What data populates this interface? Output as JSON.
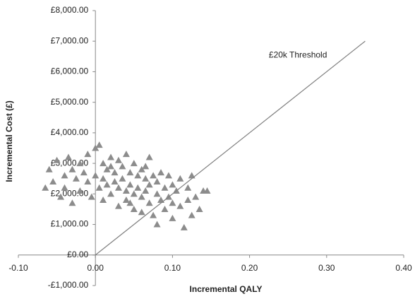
{
  "chart_data": {
    "type": "scatter",
    "x_label": "Incremental QALY",
    "y_label": "Incremental Cost (£)",
    "xlim": [
      -0.1,
      0.4
    ],
    "ylim": [
      -1000,
      8000
    ],
    "xticks": [
      {
        "value": -0.1,
        "label": "-0.10"
      },
      {
        "value": 0,
        "label": "0.00"
      },
      {
        "value": 0.1,
        "label": "0.10"
      },
      {
        "value": 0.2,
        "label": "0.20"
      },
      {
        "value": 0.3,
        "label": "0.30"
      },
      {
        "value": 0.4,
        "label": "0.40"
      }
    ],
    "yticks": [
      {
        "value": -1000,
        "label": "-£1,000.00"
      },
      {
        "value": 0,
        "label": "£0.00"
      },
      {
        "value": 1000,
        "label": "£1,000.00"
      },
      {
        "value": 2000,
        "label": "£2,000.00"
      },
      {
        "value": 3000,
        "label": "£3,000.00"
      },
      {
        "value": 4000,
        "label": "£4,000.00"
      },
      {
        "value": 5000,
        "label": "£5,000.00"
      },
      {
        "value": 6000,
        "label": "£6,000.00"
      },
      {
        "value": 7000,
        "label": "£7,000.00"
      },
      {
        "value": 8000,
        "label": "£8,000.00"
      }
    ],
    "grid": false,
    "series": [
      {
        "type": "scatter",
        "color": "#8c8c8c",
        "x": [
          -0.06,
          -0.055,
          -0.05,
          -0.045,
          -0.04,
          -0.04,
          -0.035,
          -0.03,
          -0.03,
          -0.025,
          -0.02,
          -0.02,
          -0.015,
          -0.01,
          -0.01,
          -0.005,
          0,
          0,
          0.005,
          0.005,
          0.01,
          0.01,
          0.01,
          0.015,
          0.015,
          0.02,
          0.02,
          0.025,
          0.025,
          0.03,
          0.03,
          0.03,
          0.035,
          0.035,
          0.04,
          0.04,
          0.04,
          0.045,
          0.045,
          0.05,
          0.05,
          0.05,
          0.055,
          0.055,
          0.06,
          0.06,
          0.06,
          0.065,
          0.065,
          0.07,
          0.07,
          0.07,
          0.075,
          0.075,
          0.08,
          0.08,
          0.08,
          0.085,
          0.085,
          0.09,
          0.09,
          0.095,
          0.095,
          0.1,
          0.1,
          0.1,
          0.105,
          0.11,
          0.11,
          0.115,
          0.12,
          0.12,
          0.125,
          0.13,
          0.135,
          0.14,
          0.145,
          0.125,
          -0.065,
          0.02,
          0.045,
          0.065
        ],
        "values": [
          2800,
          2400,
          3100,
          1900,
          2600,
          2200,
          3200,
          2800,
          1700,
          2500,
          3000,
          2100,
          2700,
          3300,
          2400,
          1900,
          3500,
          2600,
          3600,
          2200,
          3000,
          2500,
          1800,
          2800,
          2300,
          3200,
          2000,
          2700,
          2400,
          3100,
          2200,
          1600,
          2900,
          2500,
          3300,
          2100,
          1800,
          2700,
          2300,
          3000,
          2000,
          1500,
          2600,
          2200,
          2800,
          1900,
          1400,
          2500,
          2100,
          3200,
          2300,
          1700,
          2600,
          1300,
          2400,
          2000,
          1000,
          2700,
          1800,
          2200,
          1500,
          2600,
          1900,
          2300,
          1700,
          1200,
          2100,
          2500,
          1600,
          900,
          2200,
          1800,
          2600,
          1900,
          1500,
          2100,
          2100,
          1300,
          2200,
          2900,
          1700,
          2900
        ]
      },
      {
        "type": "line",
        "name": "£20k Threshold",
        "color": "#808080",
        "x": [
          0,
          0.35
        ],
        "values": [
          0,
          7000
        ]
      }
    ]
  }
}
